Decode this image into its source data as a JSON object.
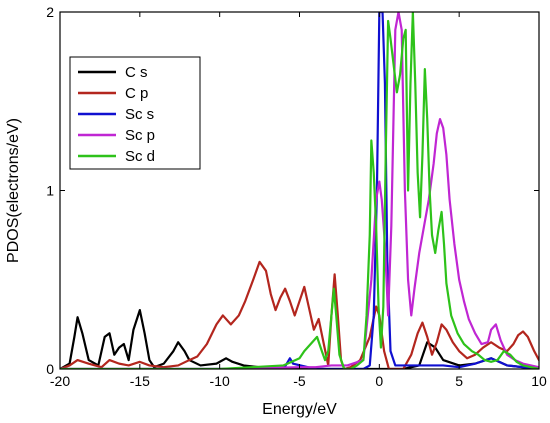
{
  "chart_data": {
    "type": "line",
    "title": "",
    "xlabel": "Energy/eV",
    "ylabel": "PDOS(electrons/eV)",
    "xlim": [
      -20,
      10
    ],
    "ylim": [
      0,
      2
    ],
    "xticks": [
      -20,
      -15,
      -10,
      -5,
      0,
      5,
      10
    ],
    "yticks": [
      0,
      1,
      2
    ],
    "grid": false,
    "legend_position": "top-left",
    "series": [
      {
        "name": "C  s",
        "color": "#000000",
        "x": [
          -20,
          -19.4,
          -19.1,
          -18.9,
          -18.6,
          -18.2,
          -17.6,
          -17.2,
          -16.9,
          -16.6,
          -16.3,
          -16.0,
          -15.7,
          -15.4,
          -15.0,
          -14.7,
          -14.4,
          -14.1,
          -13.5,
          -12.9,
          -12.6,
          -12.2,
          -11.9,
          -11.2,
          -10.2,
          -9.6,
          -9.2,
          -8.5,
          -7.5,
          -5.0,
          -0.5,
          0,
          1.5,
          2.5,
          3.0,
          3.5,
          4.0,
          5.0,
          6.0,
          7.0,
          8.0,
          10.0
        ],
        "y": [
          0.0,
          0.03,
          0.18,
          0.29,
          0.2,
          0.05,
          0.02,
          0.18,
          0.2,
          0.08,
          0.12,
          0.14,
          0.05,
          0.22,
          0.33,
          0.2,
          0.05,
          0.01,
          0.03,
          0.1,
          0.15,
          0.1,
          0.05,
          0.02,
          0.03,
          0.06,
          0.04,
          0.02,
          0.01,
          0.0,
          0.0,
          0.0,
          0.0,
          0.02,
          0.15,
          0.12,
          0.05,
          0.02,
          0.03,
          0.06,
          0.02,
          0.0
        ]
      },
      {
        "name": "C  p",
        "color": "#b3261e",
        "x": [
          -20,
          -19.4,
          -18.9,
          -18.2,
          -17.4,
          -16.9,
          -16.3,
          -15.7,
          -15.0,
          -14.4,
          -13.5,
          -12.6,
          -11.9,
          -11.4,
          -10.8,
          -10.2,
          -9.8,
          -9.3,
          -8.8,
          -8.4,
          -7.9,
          -7.5,
          -7.1,
          -6.8,
          -6.5,
          -6.2,
          -5.9,
          -5.6,
          -5.3,
          -5.0,
          -4.7,
          -4.4,
          -4.1,
          -3.8,
          -3.5,
          -3.2,
          -3.0,
          -2.8,
          -2.6,
          -2.4,
          -2.2,
          -1.8,
          -1.2,
          -0.6,
          -0.2,
          0.0,
          0.3,
          0.6,
          1.0,
          1.5,
          2.0,
          2.4,
          2.7,
          3.0,
          3.3,
          3.6,
          3.9,
          4.2,
          4.6,
          5.0,
          5.5,
          6.0,
          6.5,
          7.0,
          7.5,
          8.0,
          8.4,
          8.7,
          9.0,
          9.3,
          9.7,
          10.0
        ],
        "y": [
          0.0,
          0.02,
          0.05,
          0.03,
          0.01,
          0.05,
          0.03,
          0.02,
          0.04,
          0.02,
          0.01,
          0.02,
          0.05,
          0.07,
          0.14,
          0.25,
          0.3,
          0.25,
          0.3,
          0.38,
          0.5,
          0.6,
          0.55,
          0.42,
          0.33,
          0.4,
          0.45,
          0.38,
          0.3,
          0.38,
          0.46,
          0.34,
          0.22,
          0.28,
          0.15,
          0.02,
          0.3,
          0.53,
          0.3,
          0.05,
          0.0,
          0.01,
          0.05,
          0.18,
          0.35,
          0.3,
          0.1,
          0.0,
          0.0,
          0.0,
          0.08,
          0.2,
          0.26,
          0.18,
          0.08,
          0.15,
          0.25,
          0.22,
          0.15,
          0.1,
          0.06,
          0.08,
          0.12,
          0.15,
          0.12,
          0.1,
          0.14,
          0.19,
          0.21,
          0.18,
          0.1,
          0.05
        ]
      },
      {
        "name": "Sc s",
        "color": "#1010d0",
        "x": [
          -20,
          -15,
          -10,
          -8,
          -6,
          -5.8,
          -5.6,
          -5.4,
          -4,
          -2,
          -1.0,
          -0.6,
          -0.35,
          -0.15,
          0.0,
          0.2,
          0.35,
          0.5,
          0.7,
          1.0,
          1.5,
          2.0,
          3.0,
          4.0,
          5.0,
          6.0,
          7.0,
          8.0,
          10.0
        ],
        "y": [
          0.0,
          0.0,
          0.0,
          0.0,
          0.0,
          0.03,
          0.06,
          0.03,
          0.0,
          0.0,
          0.0,
          0.02,
          0.3,
          1.0,
          2.0,
          2.0,
          1.6,
          0.6,
          0.1,
          0.02,
          0.02,
          0.02,
          0.02,
          0.02,
          0.01,
          0.03,
          0.06,
          0.02,
          0.0
        ]
      },
      {
        "name": "Sc p",
        "color": "#c026d3",
        "x": [
          -20,
          -10,
          -5,
          -4,
          -3,
          -2,
          -1,
          -0.5,
          -0.2,
          0.0,
          0.15,
          0.35,
          0.55,
          0.75,
          1.0,
          1.2,
          1.4,
          1.6,
          1.8,
          2.0,
          2.2,
          2.5,
          2.8,
          3.1,
          3.4,
          3.6,
          3.8,
          4.0,
          4.2,
          4.4,
          4.7,
          5.0,
          5.3,
          5.6,
          6.0,
          6.4,
          6.8,
          7.0,
          7.3,
          7.6,
          8.0,
          8.5,
          9.0,
          9.5,
          10.0
        ],
        "y": [
          0.0,
          0.0,
          0.01,
          0.01,
          0.02,
          0.02,
          0.05,
          0.5,
          0.95,
          1.05,
          0.95,
          0.7,
          0.3,
          0.8,
          1.9,
          2.0,
          1.9,
          1.0,
          0.5,
          0.3,
          0.45,
          0.65,
          0.8,
          0.95,
          1.15,
          1.32,
          1.4,
          1.35,
          1.2,
          0.95,
          0.7,
          0.5,
          0.38,
          0.28,
          0.2,
          0.14,
          0.15,
          0.22,
          0.25,
          0.16,
          0.08,
          0.05,
          0.03,
          0.02,
          0.01
        ]
      },
      {
        "name": "Sc d",
        "color": "#2ec21a",
        "x": [
          -20,
          -12,
          -10,
          -8,
          -6,
          -5.5,
          -5.0,
          -4.7,
          -4.3,
          -3.9,
          -3.6,
          -3.4,
          -3.2,
          -3.0,
          -2.85,
          -2.7,
          -2.5,
          -2.2,
          -1.8,
          -1.4,
          -1.0,
          -0.8,
          -0.6,
          -0.5,
          -0.35,
          -0.2,
          -0.05,
          0.1,
          0.25,
          0.4,
          0.55,
          0.7,
          0.9,
          1.1,
          1.3,
          1.5,
          1.65,
          1.8,
          1.95,
          2.1,
          2.25,
          2.4,
          2.55,
          2.7,
          2.85,
          3.0,
          3.15,
          3.3,
          3.5,
          3.7,
          3.9,
          4.05,
          4.2,
          4.5,
          4.9,
          5.3,
          5.8,
          6.2,
          6.6,
          7.0,
          7.4,
          7.8,
          8.2,
          8.6,
          9.0,
          9.5,
          10.0
        ],
        "y": [
          0.0,
          0.0,
          0.0,
          0.01,
          0.02,
          0.04,
          0.06,
          0.1,
          0.14,
          0.18,
          0.1,
          0.05,
          0.1,
          0.3,
          0.45,
          0.3,
          0.08,
          0.0,
          0.0,
          0.02,
          0.05,
          0.3,
          0.75,
          1.28,
          1.1,
          0.8,
          0.35,
          0.12,
          0.35,
          1.2,
          1.95,
          1.85,
          1.7,
          1.55,
          1.65,
          1.85,
          1.9,
          1.0,
          1.6,
          2.0,
          1.6,
          1.1,
          0.85,
          1.2,
          1.68,
          1.4,
          1.0,
          0.75,
          0.65,
          0.78,
          0.88,
          0.7,
          0.48,
          0.3,
          0.2,
          0.14,
          0.1,
          0.08,
          0.05,
          0.04,
          0.05,
          0.1,
          0.08,
          0.04,
          0.02,
          0.01,
          0.0
        ]
      }
    ]
  }
}
